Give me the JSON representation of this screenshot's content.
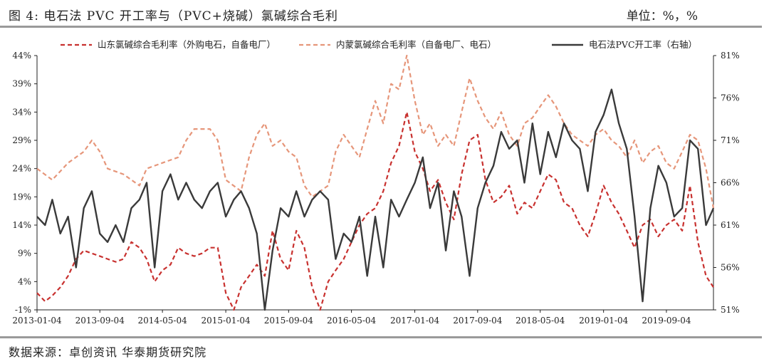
{
  "header": {
    "title": "图 4:  电石法 PVC 开工率与（PVC+烧碱）氯碱综合毛利",
    "unit": "单位：%，%"
  },
  "footer": {
    "source": "数据来源：卓创资讯  华泰期货研究院"
  },
  "colors": {
    "sd": "#c8312f",
    "nm": "#e6967a",
    "pvc": "#3a3a3a"
  },
  "chart_data": {
    "type": "line",
    "x_ticks": [
      "2013-01-04",
      "2013-09-04",
      "2014-05-04",
      "2015-01-04",
      "2015-09-04",
      "2016-05-04",
      "2017-01-04",
      "2017-09-04",
      "2018-05-04",
      "2019-01-04",
      "2019-09-04"
    ],
    "x_start": "2013-01-04",
    "x_end": "2020-03-04",
    "y_left": {
      "min": -1,
      "max": 44,
      "ticks": [
        "-1%",
        "4%",
        "9%",
        "14%",
        "19%",
        "24%",
        "29%",
        "34%",
        "39%",
        "44%"
      ]
    },
    "y_right": {
      "min": 51,
      "max": 81,
      "ticks": [
        "51%",
        "56%",
        "61%",
        "66%",
        "71%",
        "76%",
        "81%"
      ]
    },
    "legend_position": "top",
    "series": [
      {
        "name": "山东氯碱综合毛利率（外购电石，自备电厂）",
        "axis": "left",
        "style": "dashed",
        "points": [
          [
            "2013-01-04",
            2
          ],
          [
            "2013-02-04",
            0.5
          ],
          [
            "2013-03-04",
            1.5
          ],
          [
            "2013-04-04",
            3
          ],
          [
            "2013-05-04",
            5
          ],
          [
            "2013-06-04",
            8
          ],
          [
            "2013-07-04",
            9.5
          ],
          [
            "2013-08-04",
            9
          ],
          [
            "2013-09-04",
            8.5
          ],
          [
            "2013-10-04",
            8
          ],
          [
            "2013-11-04",
            7.5
          ],
          [
            "2013-12-04",
            8
          ],
          [
            "2014-01-04",
            11
          ],
          [
            "2014-02-04",
            10
          ],
          [
            "2014-03-04",
            8
          ],
          [
            "2014-04-04",
            4
          ],
          [
            "2014-05-04",
            6
          ],
          [
            "2014-06-04",
            7
          ],
          [
            "2014-07-04",
            10
          ],
          [
            "2014-08-04",
            9
          ],
          [
            "2014-09-04",
            8.5
          ],
          [
            "2014-10-04",
            9
          ],
          [
            "2014-11-04",
            10
          ],
          [
            "2014-12-04",
            10
          ],
          [
            "2015-01-04",
            2
          ],
          [
            "2015-02-04",
            -1
          ],
          [
            "2015-03-04",
            3
          ],
          [
            "2015-04-04",
            5
          ],
          [
            "2015-05-04",
            7
          ],
          [
            "2015-06-04",
            5
          ],
          [
            "2015-07-04",
            13
          ],
          [
            "2015-08-04",
            8
          ],
          [
            "2015-09-04",
            6
          ],
          [
            "2015-10-04",
            13
          ],
          [
            "2015-11-04",
            10
          ],
          [
            "2015-12-04",
            3
          ],
          [
            "2016-01-04",
            -1
          ],
          [
            "2016-02-04",
            4
          ],
          [
            "2016-03-04",
            6
          ],
          [
            "2016-04-04",
            8
          ],
          [
            "2016-05-04",
            11
          ],
          [
            "2016-06-04",
            14
          ],
          [
            "2016-07-04",
            16
          ],
          [
            "2016-08-04",
            17
          ],
          [
            "2016-09-04",
            20
          ],
          [
            "2016-10-04",
            25
          ],
          [
            "2016-11-04",
            28
          ],
          [
            "2016-12-04",
            34
          ],
          [
            "2017-01-04",
            27
          ],
          [
            "2017-02-04",
            24
          ],
          [
            "2017-03-04",
            20
          ],
          [
            "2017-04-04",
            22
          ],
          [
            "2017-05-04",
            18
          ],
          [
            "2017-06-04",
            15
          ],
          [
            "2017-07-04",
            23
          ],
          [
            "2017-08-04",
            29
          ],
          [
            "2017-09-04",
            30
          ],
          [
            "2017-10-04",
            22
          ],
          [
            "2017-11-04",
            18
          ],
          [
            "2017-12-04",
            19
          ],
          [
            "2018-01-04",
            21
          ],
          [
            "2018-02-04",
            16
          ],
          [
            "2018-03-04",
            18
          ],
          [
            "2018-04-04",
            17
          ],
          [
            "2018-05-04",
            20
          ],
          [
            "2018-06-04",
            23
          ],
          [
            "2018-07-04",
            22
          ],
          [
            "2018-08-04",
            18
          ],
          [
            "2018-09-04",
            17
          ],
          [
            "2018-10-04",
            14
          ],
          [
            "2018-11-04",
            12
          ],
          [
            "2018-12-04",
            16
          ],
          [
            "2019-01-04",
            21
          ],
          [
            "2019-02-04",
            18
          ],
          [
            "2019-03-04",
            16
          ],
          [
            "2019-04-04",
            13
          ],
          [
            "2019-05-04",
            10
          ],
          [
            "2019-06-04",
            14
          ],
          [
            "2019-07-04",
            15
          ],
          [
            "2019-08-04",
            12
          ],
          [
            "2019-09-04",
            14
          ],
          [
            "2019-10-04",
            15
          ],
          [
            "2019-11-04",
            13
          ],
          [
            "2019-12-04",
            21
          ],
          [
            "2020-01-04",
            11
          ],
          [
            "2020-02-04",
            5
          ],
          [
            "2020-03-04",
            3
          ]
        ]
      },
      {
        "name": "内蒙氯碱综合毛利率（自备电厂、电石）",
        "axis": "left",
        "style": "dashed",
        "points": [
          [
            "2013-01-04",
            24
          ],
          [
            "2013-03-04",
            22
          ],
          [
            "2013-05-04",
            25
          ],
          [
            "2013-07-04",
            27
          ],
          [
            "2013-08-04",
            29
          ],
          [
            "2013-09-04",
            27
          ],
          [
            "2013-10-04",
            24
          ],
          [
            "2013-12-04",
            23
          ],
          [
            "2014-02-04",
            21
          ],
          [
            "2014-03-04",
            24
          ],
          [
            "2014-05-04",
            25
          ],
          [
            "2014-07-04",
            26
          ],
          [
            "2014-08-04",
            29
          ],
          [
            "2014-09-04",
            31
          ],
          [
            "2014-11-04",
            31
          ],
          [
            "2014-12-04",
            29
          ],
          [
            "2015-01-04",
            22
          ],
          [
            "2015-03-04",
            20
          ],
          [
            "2015-04-04",
            26
          ],
          [
            "2015-05-04",
            30
          ],
          [
            "2015-06-04",
            32
          ],
          [
            "2015-07-04",
            28
          ],
          [
            "2015-08-04",
            29
          ],
          [
            "2015-09-04",
            27
          ],
          [
            "2015-10-04",
            26
          ],
          [
            "2015-11-04",
            21
          ],
          [
            "2015-12-04",
            19
          ],
          [
            "2016-02-04",
            21
          ],
          [
            "2016-03-04",
            27
          ],
          [
            "2016-04-04",
            30
          ],
          [
            "2016-05-04",
            28
          ],
          [
            "2016-06-04",
            26
          ],
          [
            "2016-07-04",
            31
          ],
          [
            "2016-08-04",
            36
          ],
          [
            "2016-09-04",
            32
          ],
          [
            "2016-10-04",
            39
          ],
          [
            "2016-11-04",
            38
          ],
          [
            "2016-12-04",
            44
          ],
          [
            "2017-01-04",
            36
          ],
          [
            "2017-02-04",
            30
          ],
          [
            "2017-03-04",
            32
          ],
          [
            "2017-04-04",
            28
          ],
          [
            "2017-05-04",
            30
          ],
          [
            "2017-06-04",
            28
          ],
          [
            "2017-07-04",
            34
          ],
          [
            "2017-08-04",
            40
          ],
          [
            "2017-09-04",
            36
          ],
          [
            "2017-10-04",
            33
          ],
          [
            "2017-11-04",
            31
          ],
          [
            "2017-12-04",
            34
          ],
          [
            "2018-01-04",
            30
          ],
          [
            "2018-02-04",
            28
          ],
          [
            "2018-03-04",
            32
          ],
          [
            "2018-04-04",
            33
          ],
          [
            "2018-05-04",
            35
          ],
          [
            "2018-06-04",
            37
          ],
          [
            "2018-07-04",
            35
          ],
          [
            "2018-08-04",
            32
          ],
          [
            "2018-09-04",
            30
          ],
          [
            "2018-10-04",
            29
          ],
          [
            "2018-11-04",
            28
          ],
          [
            "2018-12-04",
            30
          ],
          [
            "2019-01-04",
            31
          ],
          [
            "2019-02-04",
            29
          ],
          [
            "2019-03-04",
            28
          ],
          [
            "2019-04-04",
            26
          ],
          [
            "2019-05-04",
            29
          ],
          [
            "2019-06-04",
            25
          ],
          [
            "2019-07-04",
            27
          ],
          [
            "2019-08-04",
            28
          ],
          [
            "2019-09-04",
            25
          ],
          [
            "2019-10-04",
            24
          ],
          [
            "2019-11-04",
            27
          ],
          [
            "2019-12-04",
            30
          ],
          [
            "2020-01-04",
            29
          ],
          [
            "2020-02-04",
            24
          ],
          [
            "2020-03-04",
            17
          ]
        ]
      },
      {
        "name": "电石法PVC开工率（右轴）",
        "axis": "right",
        "style": "solid",
        "points": [
          [
            "2013-01-04",
            62
          ],
          [
            "2013-02-04",
            61
          ],
          [
            "2013-03-04",
            64
          ],
          [
            "2013-04-04",
            60
          ],
          [
            "2013-05-04",
            62
          ],
          [
            "2013-06-04",
            56
          ],
          [
            "2013-07-04",
            63
          ],
          [
            "2013-08-04",
            65
          ],
          [
            "2013-09-04",
            60
          ],
          [
            "2013-10-04",
            59
          ],
          [
            "2013-11-04",
            61
          ],
          [
            "2013-12-04",
            59
          ],
          [
            "2014-01-04",
            63
          ],
          [
            "2014-02-04",
            64
          ],
          [
            "2014-03-04",
            66
          ],
          [
            "2014-04-04",
            56
          ],
          [
            "2014-05-04",
            65
          ],
          [
            "2014-06-04",
            67
          ],
          [
            "2014-07-04",
            64
          ],
          [
            "2014-08-04",
            66
          ],
          [
            "2014-09-04",
            64
          ],
          [
            "2014-10-04",
            63
          ],
          [
            "2014-11-04",
            65
          ],
          [
            "2014-12-04",
            66
          ],
          [
            "2015-01-04",
            62
          ],
          [
            "2015-02-04",
            64
          ],
          [
            "2015-03-04",
            65
          ],
          [
            "2015-04-04",
            63
          ],
          [
            "2015-05-04",
            60
          ],
          [
            "2015-06-04",
            51
          ],
          [
            "2015-07-04",
            58
          ],
          [
            "2015-08-04",
            63
          ],
          [
            "2015-09-04",
            62
          ],
          [
            "2015-10-04",
            65
          ],
          [
            "2015-11-04",
            62
          ],
          [
            "2015-12-04",
            64
          ],
          [
            "2016-01-04",
            65
          ],
          [
            "2016-02-04",
            64
          ],
          [
            "2016-03-04",
            57
          ],
          [
            "2016-04-04",
            60
          ],
          [
            "2016-05-04",
            59
          ],
          [
            "2016-06-04",
            62
          ],
          [
            "2016-07-04",
            55
          ],
          [
            "2016-08-04",
            62
          ],
          [
            "2016-09-04",
            56
          ],
          [
            "2016-10-04",
            64
          ],
          [
            "2016-11-04",
            62
          ],
          [
            "2016-12-04",
            64
          ],
          [
            "2017-01-04",
            66
          ],
          [
            "2017-02-04",
            69
          ],
          [
            "2017-03-04",
            63
          ],
          [
            "2017-04-04",
            66
          ],
          [
            "2017-05-04",
            58
          ],
          [
            "2017-06-04",
            65
          ],
          [
            "2017-07-04",
            62
          ],
          [
            "2017-08-04",
            55
          ],
          [
            "2017-09-04",
            63
          ],
          [
            "2017-10-04",
            66
          ],
          [
            "2017-11-04",
            68
          ],
          [
            "2017-12-04",
            72
          ],
          [
            "2018-01-04",
            70
          ],
          [
            "2018-02-04",
            71
          ],
          [
            "2018-03-04",
            66
          ],
          [
            "2018-04-04",
            73
          ],
          [
            "2018-05-04",
            67
          ],
          [
            "2018-06-04",
            72
          ],
          [
            "2018-07-04",
            69
          ],
          [
            "2018-08-04",
            73
          ],
          [
            "2018-09-04",
            71
          ],
          [
            "2018-10-04",
            70
          ],
          [
            "2018-11-04",
            65
          ],
          [
            "2018-12-04",
            72
          ],
          [
            "2019-01-04",
            74
          ],
          [
            "2019-02-04",
            77
          ],
          [
            "2019-03-04",
            73
          ],
          [
            "2019-04-04",
            70
          ],
          [
            "2019-05-04",
            62
          ],
          [
            "2019-06-04",
            52
          ],
          [
            "2019-07-04",
            63
          ],
          [
            "2019-08-04",
            68
          ],
          [
            "2019-09-04",
            66
          ],
          [
            "2019-10-04",
            62
          ],
          [
            "2019-11-04",
            63
          ],
          [
            "2019-12-04",
            71
          ],
          [
            "2020-01-04",
            70
          ],
          [
            "2020-02-04",
            61
          ],
          [
            "2020-03-04",
            63
          ]
        ]
      }
    ]
  }
}
